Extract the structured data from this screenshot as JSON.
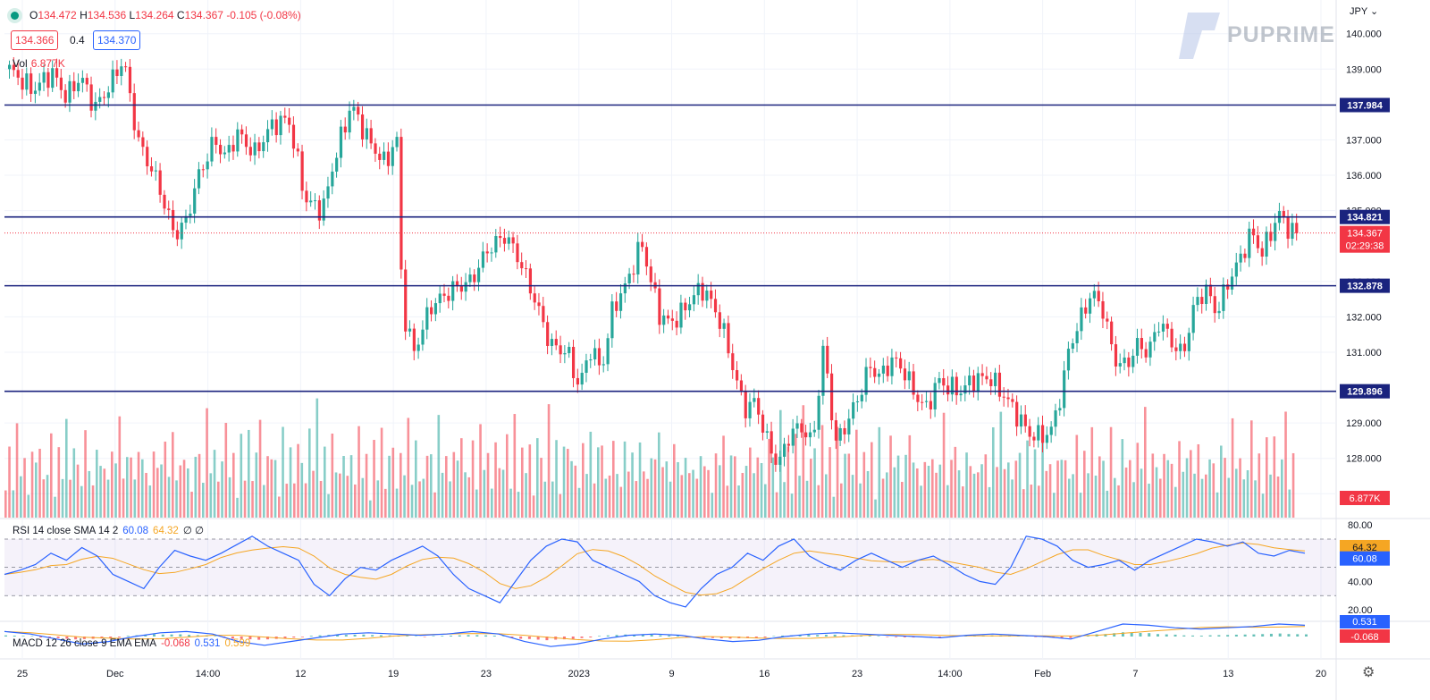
{
  "header": {
    "open_label": "O",
    "open": "134.472",
    "high_label": "H",
    "high": "134.536",
    "low_label": "L",
    "low": "134.264",
    "close_label": "C",
    "close": "134.367",
    "change": "-0.105 (-0.08%)",
    "bid": "134.366",
    "spread": "0.4",
    "ask": "134.370",
    "vol_label": "Vol",
    "vol_value": "6.877K"
  },
  "brand": {
    "name": "PUPRIME"
  },
  "currency": "JPY",
  "colors": {
    "up": "#26a69a",
    "down": "#f23645",
    "level": "#1a237e",
    "rsi": "#2962ff",
    "sma": "#f5a623",
    "macd": "#2962ff",
    "signal": "#f5a623"
  },
  "rsi": {
    "title": "RSI 14 close SMA 14 2",
    "value": "60.08",
    "sma": "64.32",
    "extra": "∅ ∅"
  },
  "macd": {
    "title": "MACD 12 26 close 9 EMA EMA",
    "hist": "-0.068",
    "macd": "0.531",
    "signal": "0.599"
  },
  "badges": {
    "price": "134.367",
    "countdown": "02:29:38",
    "volume": "6.877K",
    "rsi": "64.32",
    "rsi2": "60.08",
    "macd": "0.531",
    "hist": "-0.068"
  },
  "chart_data": {
    "type": "candlestick",
    "y_ticks": [
      140,
      139,
      137,
      136,
      135,
      133,
      132,
      131,
      129,
      128,
      127
    ],
    "y_tick_labels": [
      "140.000",
      "139.000",
      "137.000",
      "136.000",
      "135.000",
      "133.000",
      "132.000",
      "131.000",
      "129.000",
      "128.000",
      "127.000"
    ],
    "ylim": [
      126.3,
      140.7
    ],
    "x_tick_labels": [
      "25",
      "Dec",
      "14:00",
      "12",
      "19",
      "23",
      "2023",
      "9",
      "16",
      "23",
      "14:00",
      "Feb",
      "7",
      "13",
      "20"
    ],
    "horizontal_levels": [
      137.984,
      134.821,
      132.878,
      129.896
    ],
    "current_price": 134.367,
    "close_path": [
      [
        0,
        139.0
      ],
      [
        8,
        138.4
      ],
      [
        15,
        138.9
      ],
      [
        20,
        138.2
      ],
      [
        25,
        138.8
      ],
      [
        30,
        137.9
      ],
      [
        35,
        138.5
      ],
      [
        40,
        139.3
      ],
      [
        45,
        137.0
      ],
      [
        52,
        135.8
      ],
      [
        58,
        134.3
      ],
      [
        62,
        134.7
      ],
      [
        66,
        135.9
      ],
      [
        72,
        137.0
      ],
      [
        76,
        136.5
      ],
      [
        80,
        137.2
      ],
      [
        86,
        136.6
      ],
      [
        92,
        137.4
      ],
      [
        98,
        137.6
      ],
      [
        104,
        135.3
      ],
      [
        110,
        135.0
      ],
      [
        114,
        136.4
      ],
      [
        120,
        138.0
      ],
      [
        126,
        137.0
      ],
      [
        132,
        136.3
      ],
      [
        136,
        137.1
      ],
      [
        138,
        132.2
      ],
      [
        142,
        131.0
      ],
      [
        148,
        132.3
      ],
      [
        156,
        132.8
      ],
      [
        162,
        133.0
      ],
      [
        168,
        133.9
      ],
      [
        174,
        134.3
      ],
      [
        178,
        133.8
      ],
      [
        184,
        132.6
      ],
      [
        190,
        131.2
      ],
      [
        196,
        131.0
      ],
      [
        200,
        130.0
      ],
      [
        204,
        131.1
      ],
      [
        208,
        130.5
      ],
      [
        212,
        132.3
      ],
      [
        216,
        132.8
      ],
      [
        222,
        134.1
      ],
      [
        228,
        132.1
      ],
      [
        232,
        131.8
      ],
      [
        236,
        132.1
      ],
      [
        240,
        132.6
      ],
      [
        244,
        132.8
      ],
      [
        250,
        131.8
      ],
      [
        254,
        130.6
      ],
      [
        258,
        129.4
      ],
      [
        262,
        129.6
      ],
      [
        266,
        128.5
      ],
      [
        270,
        127.8
      ],
      [
        274,
        128.7
      ],
      [
        278,
        128.9
      ],
      [
        282,
        128.4
      ],
      [
        286,
        131.2
      ],
      [
        290,
        128.4
      ],
      [
        294,
        129.0
      ],
      [
        298,
        129.7
      ],
      [
        302,
        130.6
      ],
      [
        306,
        130.3
      ],
      [
        310,
        130.8
      ],
      [
        314,
        130.5
      ],
      [
        318,
        129.8
      ],
      [
        322,
        129.4
      ],
      [
        326,
        130.2
      ],
      [
        330,
        130.0
      ],
      [
        334,
        129.9
      ],
      [
        338,
        130.2
      ],
      [
        344,
        130.3
      ],
      [
        350,
        129.7
      ],
      [
        354,
        129.2
      ],
      [
        358,
        128.7
      ],
      [
        362,
        128.6
      ],
      [
        366,
        128.8
      ],
      [
        370,
        130.1
      ],
      [
        372,
        131.1
      ],
      [
        376,
        131.9
      ],
      [
        380,
        132.7
      ],
      [
        384,
        132.2
      ],
      [
        388,
        130.8
      ],
      [
        392,
        130.6
      ],
      [
        396,
        131.2
      ],
      [
        400,
        131.0
      ],
      [
        404,
        131.9
      ],
      [
        408,
        131.3
      ],
      [
        412,
        130.9
      ],
      [
        416,
        132.3
      ],
      [
        420,
        132.8
      ],
      [
        424,
        132.1
      ],
      [
        428,
        133.0
      ],
      [
        432,
        133.6
      ],
      [
        436,
        134.4
      ],
      [
        440,
        133.8
      ],
      [
        444,
        134.6
      ],
      [
        446,
        134.9
      ],
      [
        450,
        134.4
      ],
      [
        452,
        134.367
      ]
    ],
    "volume_path": [
      0.35,
      0.55,
      0.3,
      0.75,
      0.4,
      0.5,
      0.2,
      0.6,
      0.45,
      0.7,
      0.3,
      0.5,
      0.65,
      0.25,
      0.55,
      0.4,
      0.8,
      0.35,
      0.6,
      0.45,
      0.3,
      0.7,
      0.5,
      0.25,
      0.85,
      0.4,
      0.55,
      0.3,
      0.65,
      0.45,
      0.9,
      0.35,
      0.5,
      0.6,
      0.3,
      0.75,
      0.45,
      0.55,
      0.25,
      0.7,
      0.4,
      0.5,
      0.65,
      0.35,
      0.8,
      0.3,
      0.55,
      0.45,
      0.6,
      0.2,
      0.7,
      0.5,
      0.35,
      0.9,
      0.4,
      0.6,
      0.3,
      0.55,
      0.75,
      0.45,
      0.5,
      0.25,
      0.65,
      0.4,
      0.7,
      0.35,
      0.55,
      0.85,
      0.3,
      0.5,
      0.6,
      0.45,
      0.25,
      0.7,
      0.4,
      0.55,
      0.35,
      0.6,
      0.5,
      0.3,
      0.75,
      0.45,
      0.95,
      0.4,
      0.55,
      0.3,
      0.65,
      0.5,
      0.35,
      0.6
    ],
    "rsi_path": [
      45,
      48,
      52,
      60,
      55,
      64,
      58,
      45,
      40,
      35,
      50,
      62,
      58,
      55,
      60,
      66,
      72,
      65,
      60,
      55,
      38,
      30,
      42,
      50,
      48,
      55,
      60,
      65,
      58,
      45,
      35,
      30,
      25,
      40,
      55,
      65,
      70,
      68,
      55,
      50,
      45,
      40,
      30,
      25,
      22,
      35,
      45,
      50,
      60,
      55,
      65,
      70,
      58,
      52,
      48,
      55,
      60,
      55,
      50,
      55,
      58,
      52,
      45,
      40,
      38,
      50,
      72,
      70,
      65,
      55,
      50,
      52,
      55,
      48,
      55,
      60,
      65,
      70,
      68,
      65,
      68,
      60,
      58,
      62,
      60
    ],
    "macd_path": [
      0.2,
      0.1,
      -0.1,
      -0.3,
      -0.2,
      0.0,
      0.15,
      0.2,
      0.1,
      -0.2,
      -0.35,
      -0.2,
      -0.05,
      0.1,
      0.15,
      0.1,
      0.05,
      0.1,
      0.2,
      0.1,
      -0.2,
      -0.4,
      -0.3,
      -0.1,
      0.05,
      0.1,
      0.05,
      -0.1,
      -0.2,
      -0.15,
      0.0,
      0.1,
      0.15,
      0.1,
      0.05,
      0.0,
      -0.05,
      0.05,
      0.1,
      0.05,
      0.0,
      -0.1,
      0.2,
      0.5,
      0.45,
      0.35,
      0.3,
      0.35,
      0.4,
      0.5,
      0.45
    ]
  }
}
